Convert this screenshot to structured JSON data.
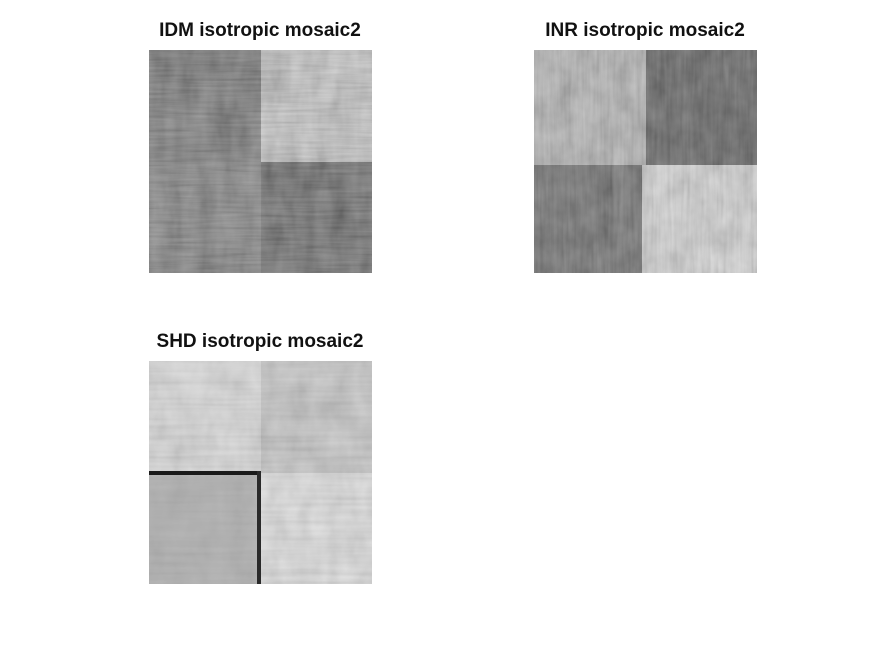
{
  "figure": {
    "panels": [
      {
        "title": "IDM isotropic mosaic2"
      },
      {
        "title": "INR isotropic mosaic2"
      },
      {
        "title": "SHD isotropic mosaic2"
      }
    ]
  },
  "colors": {
    "background": "#ffffff",
    "title_text": "#111111"
  }
}
